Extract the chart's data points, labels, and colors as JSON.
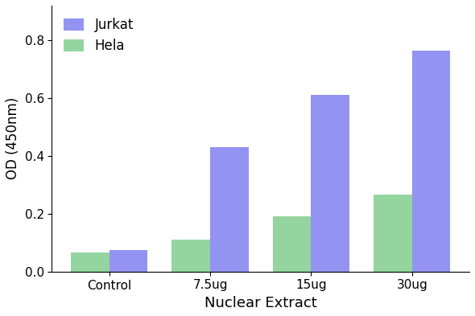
{
  "categories": [
    "Control",
    "7.5ug",
    "15ug",
    "30ug"
  ],
  "jurkat_values": [
    0.075,
    0.43,
    0.61,
    0.765
  ],
  "hela_values": [
    0.065,
    0.11,
    0.19,
    0.265
  ],
  "jurkat_color": "#7b7bef",
  "hela_color": "#7dcc8a",
  "xlabel": "Nuclear Extract",
  "ylabel": "OD (450nm)",
  "ylim": [
    0,
    0.92
  ],
  "yticks": [
    0.0,
    0.2,
    0.4,
    0.6,
    0.8
  ],
  "legend_labels": [
    "Jurkat",
    "Hela"
  ],
  "bar_width": 0.38,
  "background_color": "#ffffff",
  "xlabel_fontsize": 13,
  "ylabel_fontsize": 12,
  "tick_fontsize": 11,
  "legend_fontsize": 12
}
